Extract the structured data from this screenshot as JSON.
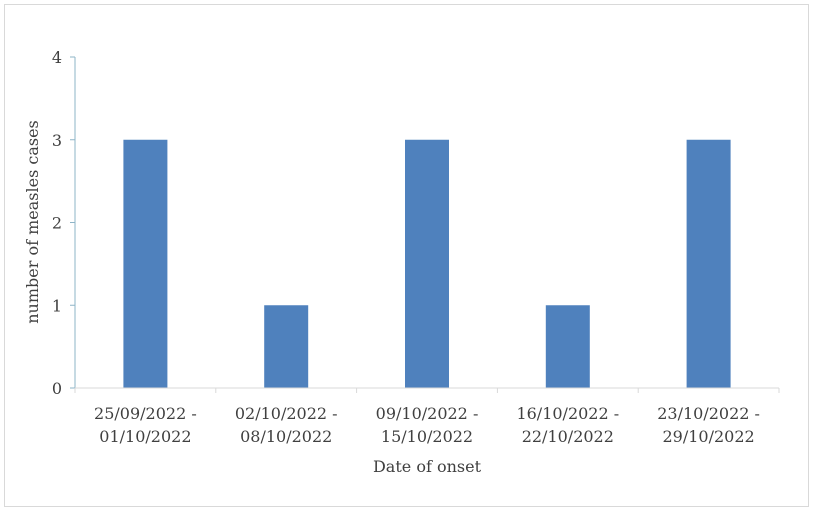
{
  "chart_data": {
    "type": "bar",
    "categories": [
      [
        "25/09/2022 -",
        "01/10/2022"
      ],
      [
        "02/10/2022 -",
        "08/10/2022"
      ],
      [
        "09/10/2022 -",
        "15/10/2022"
      ],
      [
        "16/10/2022 -",
        "22/10/2022"
      ],
      [
        "23/10/2022 -",
        "29/10/2022"
      ]
    ],
    "values": [
      3,
      1,
      3,
      1,
      3
    ],
    "title": "",
    "xlabel": "Date  of onset",
    "ylabel": "number of measles cases",
    "ylim": [
      0,
      4
    ],
    "yticks": [
      0,
      1,
      2,
      3,
      4
    ],
    "grid": false,
    "bar_color": "#4f81bd",
    "axis_color": "#404040"
  }
}
